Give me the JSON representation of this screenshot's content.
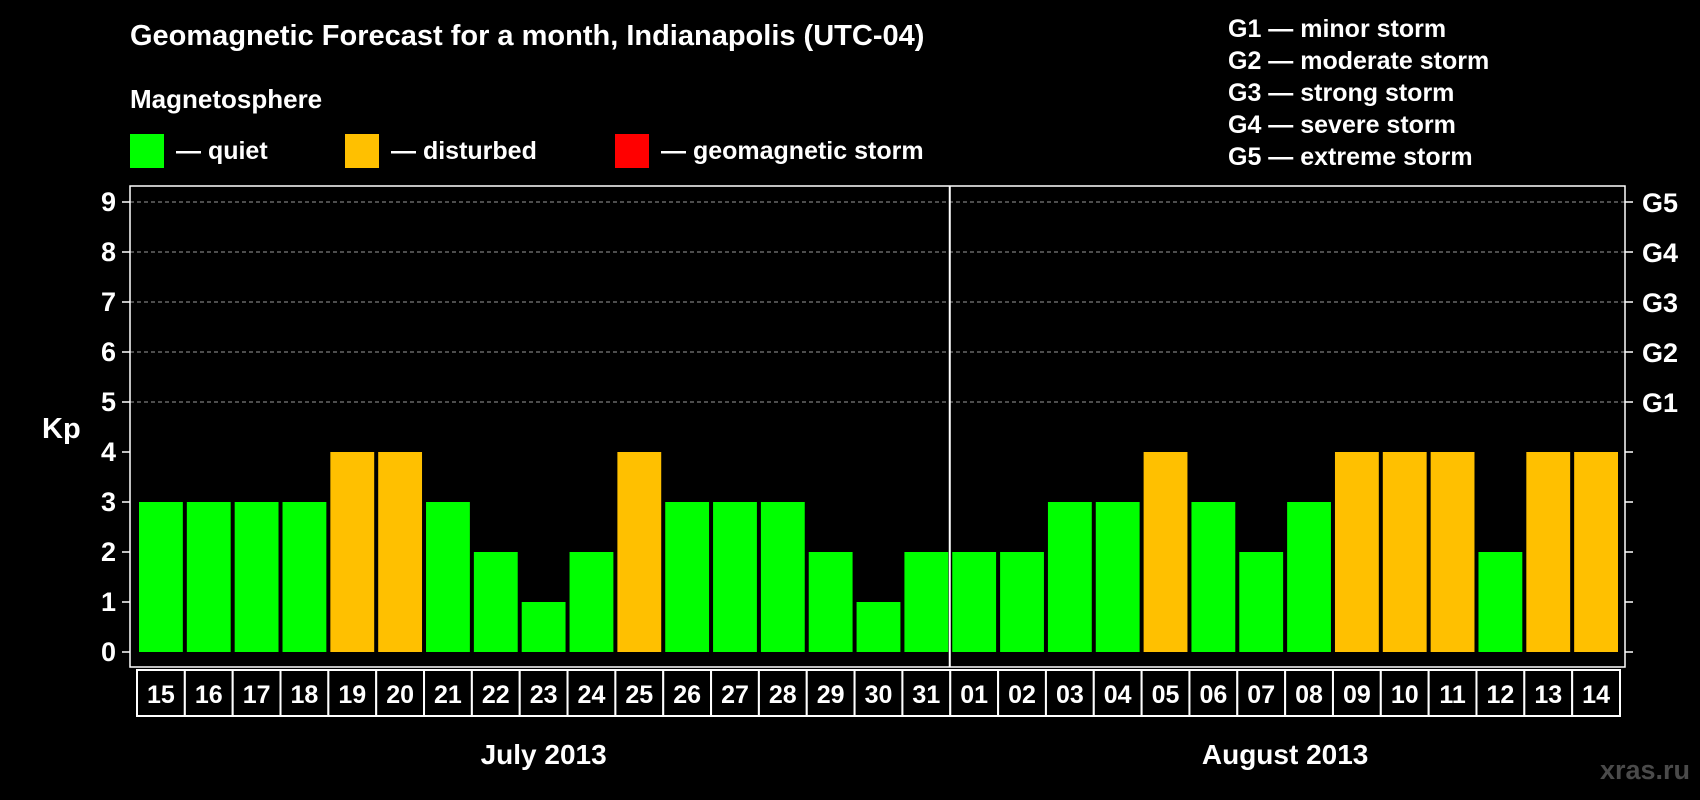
{
  "title": "Geomagnetic Forecast for a month, Indianapolis (UTC-04)",
  "magnetosphere": {
    "heading": "Magnetosphere",
    "legend": [
      {
        "label": "— quiet",
        "color": "#00ff00"
      },
      {
        "label": "— disturbed",
        "color": "#ffc000"
      },
      {
        "label": "— geomagnetic storm",
        "color": "#ff0000"
      }
    ]
  },
  "storm_levels": [
    "G1 — minor storm",
    "G2 — moderate storm",
    "G3 — strong storm",
    "G4 — severe storm",
    "G5 — extreme storm"
  ],
  "watermark": "xras.ru",
  "chart_data": {
    "type": "bar",
    "ylabel": "Kp",
    "ylim": [
      0,
      9
    ],
    "yticks": [
      "0",
      "1",
      "2",
      "3",
      "4",
      "5",
      "6",
      "7",
      "8",
      "9"
    ],
    "right_axis_labels": [
      {
        "kp": 5,
        "label": "G1"
      },
      {
        "kp": 6,
        "label": "G2"
      },
      {
        "kp": 7,
        "label": "G3"
      },
      {
        "kp": 8,
        "label": "G4"
      },
      {
        "kp": 9,
        "label": "G5"
      }
    ],
    "grid_lines": [
      5,
      6,
      7,
      8,
      9
    ],
    "categories": [
      "15",
      "16",
      "17",
      "18",
      "19",
      "20",
      "21",
      "22",
      "23",
      "24",
      "25",
      "26",
      "27",
      "28",
      "29",
      "30",
      "31",
      "01",
      "02",
      "03",
      "04",
      "05",
      "06",
      "07",
      "08",
      "09",
      "10",
      "11",
      "12",
      "13",
      "14"
    ],
    "values": [
      3,
      3,
      3,
      3,
      4,
      4,
      3,
      2,
      1,
      2,
      4,
      3,
      3,
      3,
      2,
      1,
      2,
      2,
      2,
      3,
      3,
      4,
      3,
      2,
      3,
      4,
      4,
      4,
      2,
      4,
      4
    ],
    "status": [
      "quiet",
      "quiet",
      "quiet",
      "quiet",
      "disturbed",
      "disturbed",
      "quiet",
      "quiet",
      "quiet",
      "quiet",
      "disturbed",
      "quiet",
      "quiet",
      "quiet",
      "quiet",
      "quiet",
      "quiet",
      "quiet",
      "quiet",
      "quiet",
      "quiet",
      "disturbed",
      "quiet",
      "quiet",
      "quiet",
      "disturbed",
      "disturbed",
      "disturbed",
      "quiet",
      "disturbed",
      "disturbed"
    ],
    "status_colors": {
      "quiet": "#00ff00",
      "disturbed": "#ffc000",
      "storm": "#ff0000"
    },
    "months": [
      {
        "label": "July 2013",
        "days": 17
      },
      {
        "label": "August 2013",
        "days": 14
      }
    ],
    "grid": true
  }
}
